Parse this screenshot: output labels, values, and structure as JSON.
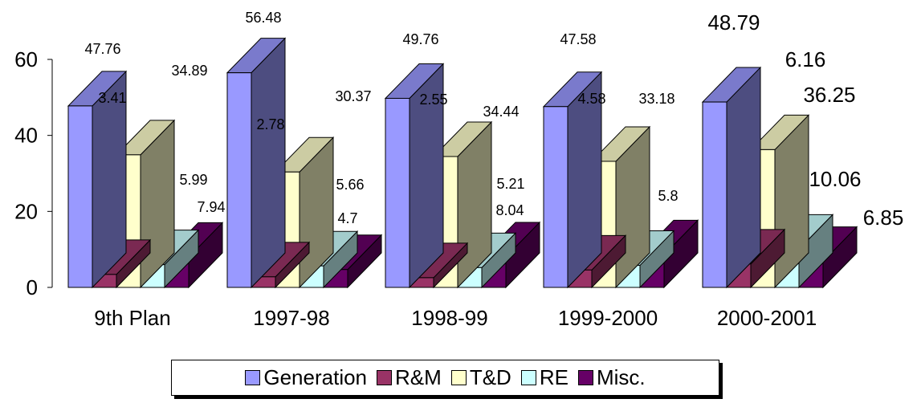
{
  "chart_data": {
    "type": "bar",
    "categories": [
      "9th Plan",
      "1997-98",
      "1998-99",
      "1999-2000",
      "2000-2001"
    ],
    "series": [
      {
        "name": "Generation",
        "color": "#9999FF",
        "values": [
          47.76,
          56.48,
          49.76,
          47.58,
          48.79
        ]
      },
      {
        "name": "R&M",
        "color": "#993366",
        "values": [
          3.41,
          2.78,
          2.55,
          4.58,
          6.16
        ]
      },
      {
        "name": "T&D",
        "color": "#FFFFCC",
        "values": [
          34.89,
          30.37,
          34.44,
          33.18,
          36.25
        ]
      },
      {
        "name": "RE",
        "color": "#CCFFFF",
        "values": [
          5.99,
          5.66,
          5.21,
          5.8,
          10.06
        ]
      },
      {
        "name": "Misc.",
        "color": "#660066",
        "values": [
          7.94,
          4.7,
          8.04,
          8.58,
          6.85
        ]
      }
    ],
    "data_labels": [
      [
        "47.76",
        "3.41",
        "34.89",
        "5.99",
        "7.94"
      ],
      [
        "56.48",
        "2.78",
        "30.37",
        "5.66",
        "4.7"
      ],
      [
        "49.76",
        "2.55",
        "34.44",
        "5.21",
        "8.04"
      ],
      [
        "47.58",
        "4.58",
        "33.18",
        "5.8",
        ""
      ],
      [
        "48.79",
        "6.16",
        "36.25",
        "10.06",
        "6.85"
      ]
    ],
    "ylim": [
      0,
      60
    ],
    "yticks": [
      0,
      20,
      40,
      60
    ],
    "grid": false,
    "legend_position": "bottom",
    "style": "3d-clustered-column"
  }
}
